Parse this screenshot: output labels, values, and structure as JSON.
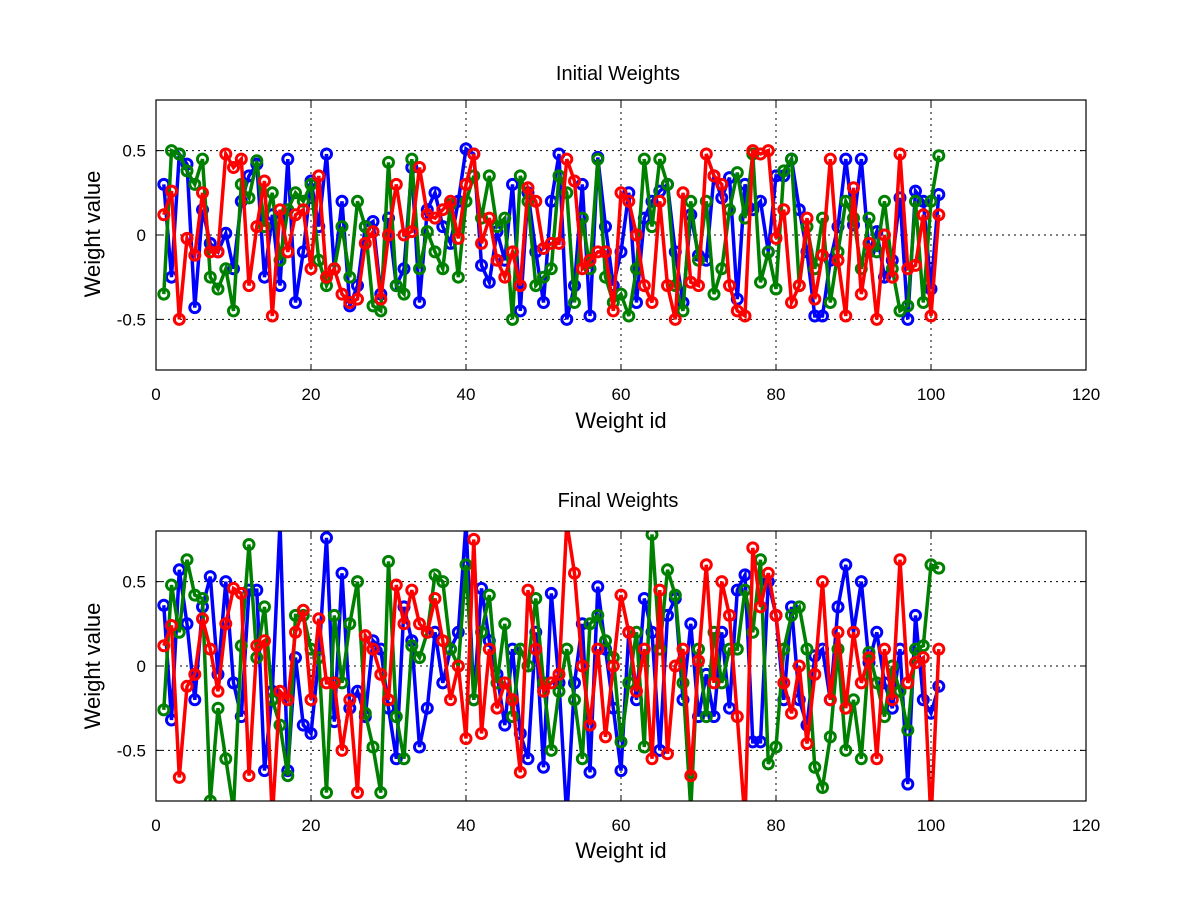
{
  "chart_data": [
    {
      "type": "line",
      "title": "Initial Weights",
      "xlabel": "Weight id",
      "ylabel": "Weight value",
      "xlim": [
        0,
        120
      ],
      "ylim": [
        -0.8,
        0.8
      ],
      "xticks": [
        "0",
        "20",
        "40",
        "60",
        "80",
        "100",
        "120"
      ],
      "yticks": [
        "-0.5",
        "0",
        "0.5"
      ],
      "ytick_values": [
        -0.5,
        0,
        0.5
      ],
      "grid": true,
      "marker": "circle",
      "x_range": [
        1,
        101
      ],
      "series": [
        {
          "color": "#0000ff",
          "values": [
            0.3,
            -0.25,
            0.48,
            0.42,
            -0.43,
            0.15,
            -0.05,
            -0.1,
            0.01,
            -0.2,
            0.2,
            0.35,
            0.42,
            -0.25,
            0.12,
            -0.3,
            0.45,
            -0.4,
            -0.1,
            0.32,
            0.05,
            0.48,
            -0.2,
            0.2,
            -0.42,
            -0.3,
            0.05,
            0.08,
            -0.35,
            0.1,
            -0.3,
            -0.2,
            0.4,
            -0.4,
            0.15,
            0.25,
            0.05,
            -0.05,
            0.2,
            0.51,
            0.48,
            -0.18,
            -0.28,
            0.02,
            -0.15,
            0.3,
            -0.45,
            0.25,
            -0.1,
            -0.4,
            0.2,
            0.48,
            -0.5,
            -0.3,
            0.3,
            -0.48,
            0.46,
            0.05,
            -0.3,
            -0.1,
            0.25,
            -0.4,
            0.1,
            0.2,
            0.26,
            0.3,
            -0.1,
            -0.4,
            0.12,
            -0.12,
            -0.15,
            0.35,
            0.22,
            0.34,
            -0.38,
            0.3,
            0.15,
            0.2,
            -0.1,
            0.35,
            0.35,
            0.45,
            0.15,
            -0.1,
            -0.48,
            -0.48,
            -0.15,
            0.05,
            0.45,
            0.06,
            0.45,
            -0.1,
            0.02,
            -0.25,
            -0.15,
            0.22,
            -0.5,
            0.26,
            0.2,
            -0.32,
            0.24
          ]
        },
        {
          "color": "#008000",
          "values": [
            -0.35,
            0.5,
            0.48,
            0.38,
            0.3,
            0.45,
            -0.25,
            -0.32,
            -0.2,
            -0.45,
            0.3,
            0.22,
            0.44,
            0.05,
            0.25,
            -0.15,
            0.15,
            0.25,
            0.2,
            0.3,
            -0.15,
            -0.3,
            -0.2,
            0.05,
            -0.25,
            0.2,
            0.05,
            -0.42,
            -0.45,
            0.43,
            -0.3,
            -0.35,
            0.45,
            -0.2,
            0.02,
            -0.1,
            -0.2,
            0.18,
            -0.25,
            0.2,
            0.35,
            0.1,
            0.35,
            0.05,
            0.1,
            -0.5,
            0.35,
            0.2,
            -0.3,
            -0.25,
            -0.2,
            0.35,
            0.25,
            -0.4,
            0.1,
            -0.2,
            0.45,
            -0.25,
            -0.4,
            -0.35,
            -0.48,
            -0.2,
            0.45,
            0.05,
            0.45,
            0.3,
            -0.3,
            -0.45,
            0.2,
            -0.15,
            0.2,
            -0.35,
            -0.2,
            0.15,
            0.37,
            0.1,
            0.48,
            -0.28,
            -0.1,
            -0.32,
            0.38,
            0.45,
            -0.3,
            0.05,
            -0.2,
            0.1,
            -0.4,
            -0.1,
            0.2,
            0.1,
            -0.2,
            0.1,
            -0.1,
            0.2,
            -0.2,
            -0.45,
            -0.42,
            0.2,
            -0.4,
            0.2,
            0.47
          ]
        },
        {
          "color": "#ff0000",
          "values": [
            0.12,
            0.26,
            -0.5,
            -0.02,
            -0.12,
            0.25,
            -0.1,
            -0.1,
            0.48,
            0.4,
            0.45,
            -0.3,
            0.05,
            0.32,
            -0.48,
            0.15,
            -0.1,
            0.12,
            0.15,
            -0.2,
            0.35,
            -0.25,
            -0.2,
            -0.35,
            -0.4,
            -0.38,
            -0.05,
            0.02,
            -0.38,
            0.0,
            0.3,
            0.0,
            0.02,
            0.4,
            0.12,
            0.1,
            0.15,
            0.2,
            -0.02,
            0.3,
            0.48,
            -0.05,
            0.1,
            -0.15,
            -0.25,
            -0.1,
            -0.3,
            0.28,
            0.2,
            -0.08,
            -0.05,
            -0.05,
            0.45,
            0.32,
            -0.2,
            -0.15,
            -0.1,
            -0.1,
            -0.45,
            0.25,
            0.2,
            0.0,
            -0.3,
            -0.4,
            0.2,
            -0.3,
            -0.5,
            0.25,
            -0.28,
            -0.3,
            0.48,
            0.35,
            0.3,
            -0.3,
            -0.45,
            -0.48,
            0.5,
            0.48,
            0.5,
            -0.02,
            0.15,
            -0.4,
            -0.3,
            0.1,
            -0.38,
            -0.12,
            0.45,
            -0.15,
            -0.48,
            0.28,
            -0.35,
            -0.05,
            -0.5,
            0.0,
            -0.25,
            0.48,
            -0.2,
            -0.18,
            0.12,
            -0.48,
            0.12
          ]
        }
      ]
    },
    {
      "type": "line",
      "title": "Final Weights",
      "xlabel": "Weight id",
      "ylabel": "Weight value",
      "xlim": [
        0,
        120
      ],
      "ylim": [
        -0.8,
        0.8
      ],
      "xticks": [
        "0",
        "20",
        "40",
        "60",
        "80",
        "100",
        "120"
      ],
      "yticks": [
        "-0.5",
        "0",
        "0.5"
      ],
      "ytick_values": [
        -0.5,
        0,
        0.5
      ],
      "grid": true,
      "marker": "circle",
      "x_range": [
        1,
        101
      ],
      "series": [
        {
          "color": "#0000ff",
          "values": [
            0.36,
            -0.32,
            0.57,
            0.25,
            -0.2,
            0.35,
            0.53,
            -0.05,
            0.5,
            -0.1,
            -0.3,
            0.45,
            0.45,
            -0.62,
            -0.15,
            0.85,
            -0.62,
            0.05,
            -0.35,
            -0.4,
            0.05,
            0.76,
            -0.33,
            0.55,
            -0.25,
            -0.15,
            -0.3,
            0.15,
            0.1,
            -0.25,
            -0.55,
            0.35,
            0.15,
            -0.48,
            -0.25,
            0.2,
            -0.1,
            0.1,
            0.2,
            0.85,
            -0.2,
            0.46,
            0.15,
            -0.05,
            -0.35,
            0.1,
            -0.4,
            -0.55,
            0.2,
            -0.6,
            0.43,
            -0.1,
            -0.9,
            -0.1,
            0.25,
            -0.63,
            0.47,
            0.1,
            -0.25,
            -0.62,
            0.2,
            -0.2,
            0.4,
            0.2,
            -0.5,
            0.3,
            0.4,
            -0.2,
            0.25,
            -0.3,
            -0.05,
            -0.3,
            0.2,
            -0.25,
            0.45,
            0.54,
            -0.45,
            -0.45,
            0.5,
            0.3,
            -0.2,
            0.35,
            -0.2,
            -0.35,
            0.06,
            0.1,
            -0.2,
            0.35,
            0.6,
            0.2,
            0.5,
            0.02,
            0.2,
            -0.1,
            -0.25,
            0.1,
            -0.7,
            0.3,
            -0.2,
            -0.28,
            -0.12
          ]
        },
        {
          "color": "#008000",
          "values": [
            -0.26,
            0.48,
            0.2,
            0.63,
            0.42,
            0.4,
            -0.8,
            -0.25,
            -0.55,
            -0.85,
            0.12,
            0.72,
            0.05,
            0.35,
            -0.2,
            -0.35,
            -0.65,
            0.3,
            0.3,
            0.1,
            0.05,
            -0.75,
            0.3,
            -0.1,
            0.25,
            0.5,
            -0.28,
            -0.48,
            -0.75,
            0.62,
            -0.3,
            -0.55,
            0.12,
            0.05,
            0.2,
            0.54,
            0.5,
            0.1,
            0.0,
            0.6,
            -0.2,
            0.2,
            0.42,
            -0.1,
            0.25,
            -0.3,
            0.1,
            0.0,
            0.4,
            -0.1,
            -0.5,
            -0.15,
            0.1,
            -0.2,
            -0.55,
            0.25,
            0.3,
            0.15,
            0.05,
            -0.45,
            -0.1,
            0.2,
            -0.48,
            0.78,
            0.1,
            0.57,
            0.42,
            -0.1,
            -0.85,
            0.1,
            -0.3,
            0.2,
            -0.1,
            0.1,
            0.1,
            0.45,
            0.2,
            0.63,
            -0.58,
            -0.48,
            0.1,
            0.3,
            0.35,
            0.1,
            -0.6,
            -0.72,
            -0.42,
            0.1,
            -0.5,
            -0.2,
            -0.55,
            0.08,
            -0.1,
            -0.3,
            0.0,
            -0.15,
            -0.38,
            0.1,
            0.12,
            0.6,
            0.58
          ]
        },
        {
          "color": "#ff0000",
          "values": [
            0.12,
            0.24,
            -0.66,
            -0.12,
            -0.05,
            0.28,
            0.1,
            -0.15,
            0.25,
            0.46,
            0.43,
            -0.65,
            0.12,
            0.15,
            -0.9,
            -0.15,
            -0.2,
            0.2,
            0.33,
            -0.2,
            0.28,
            -0.1,
            -0.1,
            -0.5,
            -0.2,
            -0.75,
            0.18,
            0.1,
            -0.05,
            -0.2,
            0.48,
            0.25,
            0.45,
            0.25,
            0.2,
            0.4,
            0.15,
            -0.2,
            0.0,
            -0.43,
            0.75,
            -0.4,
            0.1,
            -0.25,
            -0.1,
            -0.2,
            -0.63,
            0.45,
            0.1,
            -0.15,
            -0.1,
            -0.05,
            0.85,
            0.55,
            0.0,
            -0.35,
            0.1,
            -0.42,
            0.0,
            0.42,
            0.2,
            -0.15,
            0.1,
            -0.55,
            0.45,
            -0.52,
            0.0,
            0.1,
            -0.65,
            0.03,
            0.6,
            -0.1,
            0.5,
            0.3,
            -0.3,
            -0.92,
            0.7,
            0.35,
            0.55,
            0.3,
            -0.1,
            -0.28,
            0.0,
            -0.46,
            -0.05,
            0.5,
            -0.2,
            0.2,
            -0.25,
            0.2,
            -0.1,
            0.05,
            -0.55,
            0.1,
            -0.2,
            0.63,
            -0.1,
            0.02,
            0.05,
            -0.92,
            0.1
          ]
        }
      ]
    }
  ]
}
